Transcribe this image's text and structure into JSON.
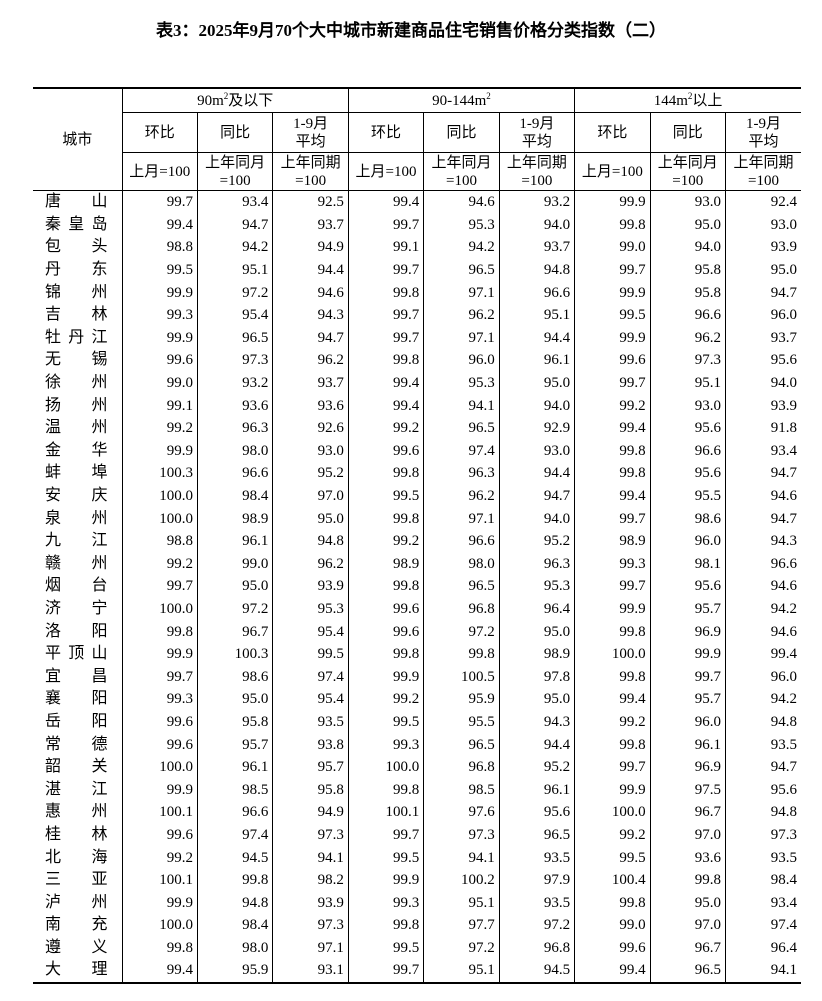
{
  "title": "表3：2025年9月70个大中城市新建商品住宅销售价格分类指数（二）",
  "header": {
    "city": "城市",
    "groups": [
      {
        "pre": "90m",
        "sup": "2",
        "post": "及以下"
      },
      {
        "pre": "90-144m",
        "sup": "2",
        "post": ""
      },
      {
        "pre": "144m",
        "sup": "2",
        "post": "以上"
      }
    ],
    "sub": [
      "环比",
      "同比",
      "1-9月\n平均"
    ],
    "base": [
      "上月=100",
      "上年同月\n=100",
      "上年同期\n=100"
    ]
  },
  "rows": [
    {
      "city": "唐山",
      "v": [
        "99.7",
        "93.4",
        "92.5",
        "99.4",
        "94.6",
        "93.2",
        "99.9",
        "93.0",
        "92.4"
      ]
    },
    {
      "city": "秦皇岛",
      "v": [
        "99.4",
        "94.7",
        "93.7",
        "99.7",
        "95.3",
        "94.0",
        "99.8",
        "95.0",
        "93.0"
      ]
    },
    {
      "city": "包头",
      "v": [
        "98.8",
        "94.2",
        "94.9",
        "99.1",
        "94.2",
        "93.7",
        "99.0",
        "94.0",
        "93.9"
      ]
    },
    {
      "city": "丹东",
      "v": [
        "99.5",
        "95.1",
        "94.4",
        "99.7",
        "96.5",
        "94.8",
        "99.7",
        "95.8",
        "95.0"
      ]
    },
    {
      "city": "锦州",
      "v": [
        "99.9",
        "97.2",
        "94.6",
        "99.8",
        "97.1",
        "96.6",
        "99.9",
        "95.8",
        "94.7"
      ]
    },
    {
      "city": "吉林",
      "v": [
        "99.3",
        "95.4",
        "94.3",
        "99.7",
        "96.2",
        "95.1",
        "99.5",
        "96.6",
        "96.0"
      ]
    },
    {
      "city": "牡丹江",
      "v": [
        "99.9",
        "96.5",
        "94.7",
        "99.7",
        "97.1",
        "94.4",
        "99.9",
        "96.2",
        "93.7"
      ]
    },
    {
      "city": "无锡",
      "v": [
        "99.6",
        "97.3",
        "96.2",
        "99.8",
        "96.0",
        "96.1",
        "99.6",
        "97.3",
        "95.6"
      ]
    },
    {
      "city": "徐州",
      "v": [
        "99.0",
        "93.2",
        "93.7",
        "99.4",
        "95.3",
        "95.0",
        "99.7",
        "95.1",
        "94.0"
      ]
    },
    {
      "city": "扬州",
      "v": [
        "99.1",
        "93.6",
        "93.6",
        "99.4",
        "94.1",
        "94.0",
        "99.2",
        "93.0",
        "93.9"
      ]
    },
    {
      "city": "温州",
      "v": [
        "99.2",
        "96.3",
        "92.6",
        "99.2",
        "96.5",
        "92.9",
        "99.4",
        "95.6",
        "91.8"
      ]
    },
    {
      "city": "金华",
      "v": [
        "99.9",
        "98.0",
        "93.0",
        "99.6",
        "97.4",
        "93.0",
        "99.8",
        "96.6",
        "93.4"
      ]
    },
    {
      "city": "蚌埠",
      "v": [
        "100.3",
        "96.6",
        "95.2",
        "99.8",
        "96.3",
        "94.4",
        "99.8",
        "95.6",
        "94.7"
      ]
    },
    {
      "city": "安庆",
      "v": [
        "100.0",
        "98.4",
        "97.0",
        "99.5",
        "96.2",
        "94.7",
        "99.4",
        "95.5",
        "94.6"
      ]
    },
    {
      "city": "泉州",
      "v": [
        "100.0",
        "98.9",
        "95.0",
        "99.8",
        "97.1",
        "94.0",
        "99.7",
        "98.6",
        "94.7"
      ]
    },
    {
      "city": "九江",
      "v": [
        "98.8",
        "96.1",
        "94.8",
        "99.2",
        "96.6",
        "95.2",
        "98.9",
        "96.0",
        "94.3"
      ]
    },
    {
      "city": "赣州",
      "v": [
        "99.2",
        "99.0",
        "96.2",
        "98.9",
        "98.0",
        "96.3",
        "99.3",
        "98.1",
        "96.6"
      ]
    },
    {
      "city": "烟台",
      "v": [
        "99.7",
        "95.0",
        "93.9",
        "99.8",
        "96.5",
        "95.3",
        "99.7",
        "95.6",
        "94.6"
      ]
    },
    {
      "city": "济宁",
      "v": [
        "100.0",
        "97.2",
        "95.3",
        "99.6",
        "96.8",
        "96.4",
        "99.9",
        "95.7",
        "94.2"
      ]
    },
    {
      "city": "洛阳",
      "v": [
        "99.8",
        "96.7",
        "95.4",
        "99.6",
        "97.2",
        "95.0",
        "99.8",
        "96.9",
        "94.6"
      ]
    },
    {
      "city": "平顶山",
      "v": [
        "99.9",
        "100.3",
        "99.5",
        "99.8",
        "99.8",
        "98.9",
        "100.0",
        "99.9",
        "99.4"
      ]
    },
    {
      "city": "宜昌",
      "v": [
        "99.7",
        "98.6",
        "97.4",
        "99.9",
        "100.5",
        "97.8",
        "99.8",
        "99.7",
        "96.0"
      ]
    },
    {
      "city": "襄阳",
      "v": [
        "99.3",
        "95.0",
        "95.4",
        "99.2",
        "95.9",
        "95.0",
        "99.4",
        "95.7",
        "94.2"
      ]
    },
    {
      "city": "岳阳",
      "v": [
        "99.6",
        "95.8",
        "93.5",
        "99.5",
        "95.5",
        "94.3",
        "99.2",
        "96.0",
        "94.8"
      ]
    },
    {
      "city": "常德",
      "v": [
        "99.6",
        "95.7",
        "93.8",
        "99.3",
        "96.5",
        "94.4",
        "99.8",
        "96.1",
        "93.5"
      ]
    },
    {
      "city": "韶关",
      "v": [
        "100.0",
        "96.1",
        "95.7",
        "100.0",
        "96.8",
        "95.2",
        "99.7",
        "96.9",
        "94.7"
      ]
    },
    {
      "city": "湛江",
      "v": [
        "99.9",
        "98.5",
        "95.8",
        "99.8",
        "98.5",
        "96.1",
        "99.9",
        "97.5",
        "95.6"
      ]
    },
    {
      "city": "惠州",
      "v": [
        "100.1",
        "96.6",
        "94.9",
        "100.1",
        "97.6",
        "95.6",
        "100.0",
        "96.7",
        "94.8"
      ]
    },
    {
      "city": "桂林",
      "v": [
        "99.6",
        "97.4",
        "97.3",
        "99.7",
        "97.3",
        "96.5",
        "99.2",
        "97.0",
        "97.3"
      ]
    },
    {
      "city": "北海",
      "v": [
        "99.2",
        "94.5",
        "94.1",
        "99.5",
        "94.1",
        "93.5",
        "99.5",
        "93.6",
        "93.5"
      ]
    },
    {
      "city": "三亚",
      "v": [
        "100.1",
        "99.8",
        "98.2",
        "99.9",
        "100.2",
        "97.9",
        "100.4",
        "99.8",
        "98.4"
      ]
    },
    {
      "city": "泸州",
      "v": [
        "99.9",
        "94.8",
        "93.9",
        "99.3",
        "95.1",
        "93.5",
        "99.8",
        "95.0",
        "93.4"
      ]
    },
    {
      "city": "南充",
      "v": [
        "100.0",
        "98.4",
        "97.3",
        "99.8",
        "97.7",
        "97.2",
        "99.0",
        "97.0",
        "97.4"
      ]
    },
    {
      "city": "遵义",
      "v": [
        "99.8",
        "98.0",
        "97.1",
        "99.5",
        "97.2",
        "96.8",
        "99.6",
        "96.7",
        "96.4"
      ]
    },
    {
      "city": "大理",
      "v": [
        "99.4",
        "95.9",
        "93.1",
        "99.7",
        "95.1",
        "94.5",
        "99.4",
        "96.5",
        "94.1"
      ]
    }
  ]
}
